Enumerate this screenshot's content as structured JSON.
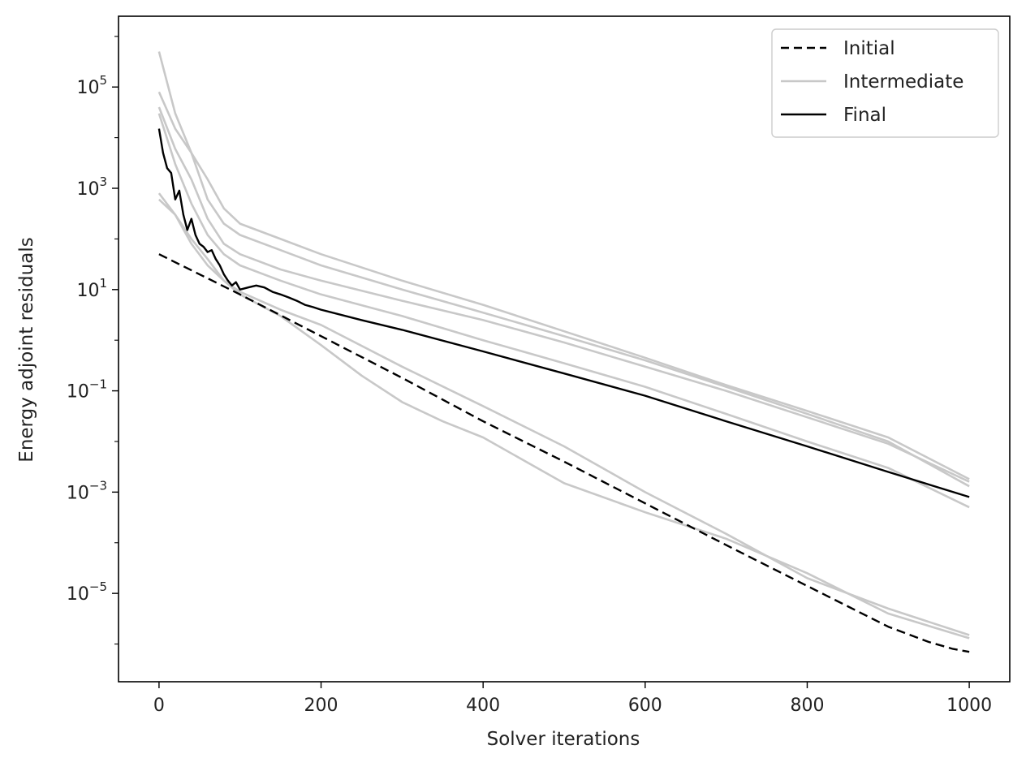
{
  "chart_data": {
    "type": "line",
    "xlabel": "Solver iterations",
    "ylabel": "Energy adjoint residuals",
    "y_scale": "log",
    "xlim": [
      -50,
      1050
    ],
    "ylim": [
      1.8e-07,
      2500000.0
    ],
    "x_ticks": [
      0,
      200,
      400,
      600,
      800,
      1000
    ],
    "y_ticks": [
      {
        "value": 100000.0,
        "base": "10",
        "exp": "5"
      },
      {
        "value": 1000.0,
        "base": "10",
        "exp": "3"
      },
      {
        "value": 10.0,
        "base": "10",
        "exp": "1"
      },
      {
        "value": 0.1,
        "base": "10",
        "exp": "−1"
      },
      {
        "value": 0.001,
        "base": "10",
        "exp": "−3"
      },
      {
        "value": 1e-05,
        "base": "10",
        "exp": "−5"
      }
    ],
    "legend": {
      "position": "top-right",
      "entries": [
        {
          "label": "Initial",
          "color": "#000000",
          "style": "dashed"
        },
        {
          "label": "Intermediate",
          "color": "#c8c8c8",
          "style": "solid"
        },
        {
          "label": "Final",
          "color": "#000000",
          "style": "solid"
        }
      ]
    },
    "series": [
      {
        "name": "Intermediate",
        "color": "#c8c8c8",
        "style": "solid",
        "x": [
          0,
          20,
          40,
          60,
          80,
          100,
          150,
          200,
          300,
          400,
          500,
          600,
          700,
          800,
          900,
          1000
        ],
        "y": [
          500000,
          30000,
          5000,
          1500,
          400,
          200,
          100,
          50,
          15,
          5,
          1.5,
          0.45,
          0.13,
          0.04,
          0.012,
          0.0018
        ]
      },
      {
        "name": "Intermediate",
        "color": "#c8c8c8",
        "style": "solid",
        "x": [
          0,
          20,
          40,
          60,
          80,
          100,
          150,
          200,
          300,
          400,
          500,
          600,
          700,
          800,
          900,
          1000
        ],
        "y": [
          80000,
          15000,
          5000,
          600,
          200,
          120,
          60,
          30,
          10,
          3.5,
          1.2,
          0.4,
          0.12,
          0.035,
          0.01,
          0.0013
        ]
      },
      {
        "name": "Intermediate",
        "color": "#c8c8c8",
        "style": "solid",
        "x": [
          0,
          20,
          40,
          60,
          80,
          100,
          150,
          200,
          300,
          400,
          500,
          600,
          700,
          800,
          900,
          1000
        ],
        "y": [
          40000,
          6000,
          1500,
          250,
          80,
          50,
          25,
          15,
          6,
          2.5,
          0.9,
          0.3,
          0.1,
          0.03,
          0.009,
          0.0016
        ]
      },
      {
        "name": "Intermediate",
        "color": "#c8c8c8",
        "style": "solid",
        "x": [
          0,
          20,
          40,
          60,
          80,
          100,
          150,
          200,
          300,
          400,
          500,
          600,
          700,
          800,
          900,
          1000
        ],
        "y": [
          30000,
          3000,
          500,
          120,
          50,
          30,
          15,
          8,
          3,
          1,
          0.35,
          0.12,
          0.035,
          0.01,
          0.003,
          0.0005
        ]
      },
      {
        "name": "Intermediate",
        "color": "#c8c8c8",
        "style": "solid",
        "x": [
          0,
          20,
          40,
          60,
          80,
          100,
          150,
          200,
          300,
          400,
          500,
          600,
          700,
          800,
          900,
          1000
        ],
        "y": [
          800,
          300,
          100,
          40,
          15,
          9,
          4,
          2,
          0.3,
          0.05,
          0.008,
          0.001,
          0.00015,
          2e-05,
          5e-06,
          1.5e-06
        ]
      },
      {
        "name": "Intermediate",
        "color": "#c8c8c8",
        "style": "solid",
        "x": [
          0,
          20,
          40,
          60,
          80,
          100,
          150,
          200,
          250,
          300,
          350,
          400,
          500,
          600,
          700,
          800,
          900,
          1000
        ],
        "y": [
          600,
          300,
          80,
          30,
          15,
          8,
          3,
          0.8,
          0.2,
          0.06,
          0.025,
          0.012,
          0.0015,
          0.0004,
          0.00012,
          2.5e-05,
          4e-06,
          1.3e-06
        ]
      },
      {
        "name": "Initial",
        "color": "#000000",
        "style": "dashed",
        "x": [
          0,
          100,
          200,
          300,
          400,
          500,
          600,
          700,
          800,
          900,
          950,
          980,
          1000
        ],
        "y": [
          50,
          8,
          1.2,
          0.18,
          0.025,
          0.004,
          0.0006,
          9e-05,
          1.4e-05,
          2.2e-06,
          1.1e-06,
          8e-07,
          7e-07
        ]
      },
      {
        "name": "Final",
        "color": "#000000",
        "style": "solid",
        "x": [
          0,
          5,
          10,
          15,
          20,
          25,
          30,
          35,
          40,
          45,
          50,
          55,
          60,
          65,
          70,
          75,
          80,
          85,
          90,
          95,
          100,
          110,
          120,
          130,
          140,
          150,
          160,
          170,
          180,
          190,
          200,
          250,
          300,
          400,
          500,
          600,
          700,
          800,
          900,
          1000
        ],
        "y": [
          15000,
          5000,
          2500,
          2000,
          600,
          900,
          300,
          150,
          250,
          120,
          80,
          70,
          55,
          60,
          40,
          30,
          20,
          15,
          12,
          14,
          10,
          11,
          12,
          11,
          9,
          8,
          7,
          6,
          5,
          4.5,
          4,
          2.5,
          1.6,
          0.6,
          0.22,
          0.08,
          0.025,
          0.008,
          0.0025,
          0.0008
        ]
      }
    ]
  }
}
